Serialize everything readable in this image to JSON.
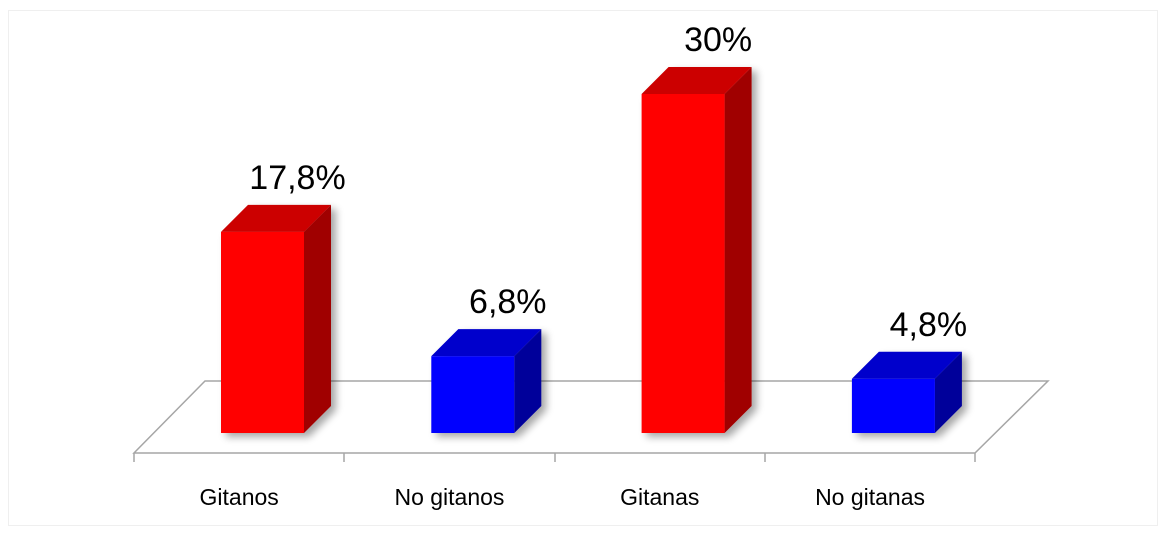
{
  "chart_data": {
    "type": "bar",
    "style": "3d-column",
    "categories": [
      "Gitanos",
      "No gitanos",
      "Gitanas",
      "No gitanas"
    ],
    "values": [
      17.8,
      6.8,
      30,
      4.8
    ],
    "value_labels": [
      "17,8%",
      "6,8%",
      "30%",
      "4,8%"
    ],
    "unit": "%",
    "title": "",
    "xlabel": "",
    "ylabel": "",
    "ylim": [
      0,
      30
    ],
    "grid": false,
    "legend": "none",
    "colors": {
      "front": [
        "#ff0000",
        "#0000ff",
        "#ff0000",
        "#0000ff"
      ],
      "top": [
        "#cc0000",
        "#0000cc",
        "#cc0000",
        "#0000cc"
      ],
      "side": [
        "#a00000",
        "#00009a",
        "#a00000",
        "#00009a"
      ],
      "floor_line": "#a6a6a6",
      "text": "#000000"
    }
  }
}
